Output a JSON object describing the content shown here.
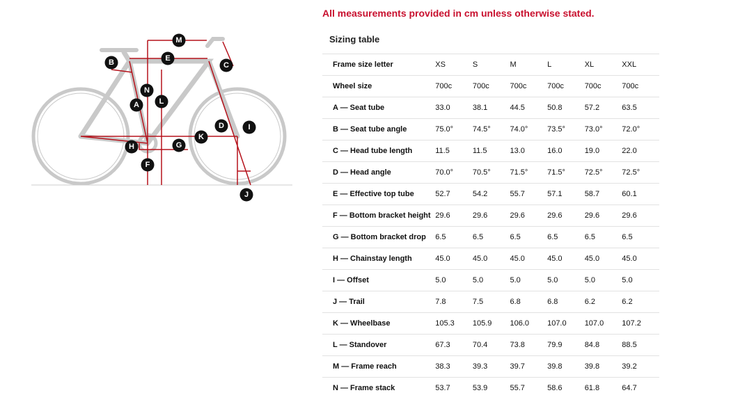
{
  "notice": "All measurements provided in cm unless otherwise stated.",
  "table": {
    "title": "Sizing table",
    "header": [
      "Frame size letter",
      "XS",
      "S",
      "M",
      "L",
      "XL",
      "XXL"
    ],
    "rows": [
      [
        "Wheel size",
        "700c",
        "700c",
        "700c",
        "700c",
        "700c",
        "700c"
      ],
      [
        "A — Seat tube",
        "33.0",
        "38.1",
        "44.5",
        "50.8",
        "57.2",
        "63.5"
      ],
      [
        "B — Seat tube angle",
        "75.0°",
        "74.5°",
        "74.0°",
        "73.5°",
        "73.0°",
        "72.0°"
      ],
      [
        "C — Head tube length",
        "11.5",
        "11.5",
        "13.0",
        "16.0",
        "19.0",
        "22.0"
      ],
      [
        "D — Head angle",
        "70.0°",
        "70.5°",
        "71.5°",
        "71.5°",
        "72.5°",
        "72.5°"
      ],
      [
        "E — Effective top tube",
        "52.7",
        "54.2",
        "55.7",
        "57.1",
        "58.7",
        "60.1"
      ],
      [
        "F — Bottom bracket height",
        "29.6",
        "29.6",
        "29.6",
        "29.6",
        "29.6",
        "29.6"
      ],
      [
        "G — Bottom bracket drop",
        "6.5",
        "6.5",
        "6.5",
        "6.5",
        "6.5",
        "6.5"
      ],
      [
        "H — Chainstay length",
        "45.0",
        "45.0",
        "45.0",
        "45.0",
        "45.0",
        "45.0"
      ],
      [
        "I — Offset",
        "5.0",
        "5.0",
        "5.0",
        "5.0",
        "5.0",
        "5.0"
      ],
      [
        "J — Trail",
        "7.8",
        "7.5",
        "6.8",
        "6.8",
        "6.2",
        "6.2"
      ],
      [
        "K — Wheelbase",
        "105.3",
        "105.9",
        "106.0",
        "107.0",
        "107.0",
        "107.2"
      ],
      [
        "L — Standover",
        "67.3",
        "70.4",
        "73.8",
        "79.9",
        "84.8",
        "88.5"
      ],
      [
        "M — Frame reach",
        "38.3",
        "39.3",
        "39.7",
        "39.8",
        "39.8",
        "39.2"
      ],
      [
        "N — Frame stack",
        "53.7",
        "53.9",
        "55.7",
        "58.6",
        "61.8",
        "64.7"
      ]
    ]
  },
  "diagram": {
    "labels": [
      "M",
      "E",
      "B",
      "C",
      "N",
      "L",
      "A",
      "D",
      "I",
      "K",
      "H",
      "G",
      "F",
      "J"
    ]
  }
}
